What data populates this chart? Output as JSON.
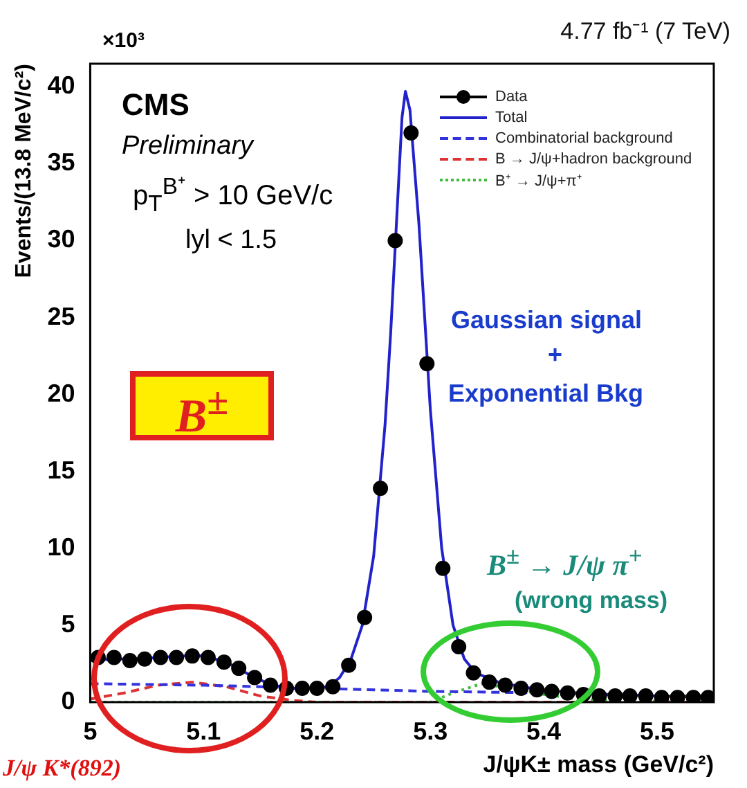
{
  "chart_data": {
    "type": "line",
    "xlabel": "J/ψK± mass (GeV/c²)",
    "ylabel": "Events/(13.8 MeV/c²)",
    "xlim": [
      5,
      5.55
    ],
    "xticks": [
      5,
      5.1,
      5.2,
      5.3,
      5.4,
      5.5
    ],
    "ylim": [
      0,
      41.5
    ],
    "yticks": [
      0,
      5,
      10,
      15,
      20,
      25,
      30,
      35,
      40
    ],
    "legend": "top right",
    "grid": false,
    "annotations": [
      "4.77 fb⁻¹ (7 TeV)",
      "×10³",
      "CMS",
      "Preliminary",
      "p$_{T}$$^{B⁺}$ > 10 GeV/c",
      "lyl < 1.5",
      "B$^{±}$",
      "Gaussian signal",
      "+",
      "Exponential Bkg",
      "B$^{±}$ → J/ψ π$^{+}$",
      "(wrong mass)",
      "J/ψ K*(892)"
    ],
    "series": [
      {
        "name": "Data",
        "type": "scatter",
        "color": "#000000",
        "marker": "circle",
        "x": [
          5.007,
          5.021,
          5.035,
          5.048,
          5.062,
          5.076,
          5.09,
          5.104,
          5.118,
          5.131,
          5.145,
          5.159,
          5.173,
          5.187,
          5.2,
          5.214,
          5.228,
          5.242,
          5.256,
          5.269,
          5.283,
          5.297,
          5.311,
          5.325,
          5.338,
          5.352,
          5.366,
          5.38,
          5.394,
          5.407,
          5.421,
          5.435,
          5.449,
          5.463,
          5.476,
          5.49,
          5.504,
          5.518,
          5.532,
          5.545
        ],
        "values": [
          2.9,
          2.9,
          2.7,
          2.8,
          2.9,
          2.9,
          3.0,
          2.9,
          2.6,
          2.2,
          1.6,
          1.1,
          0.9,
          0.9,
          0.9,
          1.0,
          2.4,
          5.5,
          13.9,
          30,
          37,
          22,
          8.7,
          3.6,
          1.9,
          1.3,
          1.1,
          0.9,
          0.8,
          0.7,
          0.6,
          0.5,
          0.4,
          0.4,
          0.4,
          0.4,
          0.3,
          0.3,
          0.3,
          0.3
        ]
      },
      {
        "name": "Total",
        "type": "line",
        "color": "#2222cc",
        "line_style": "solid",
        "x": [
          5.0,
          5.02,
          5.04,
          5.06,
          5.08,
          5.1,
          5.12,
          5.14,
          5.16,
          5.18,
          5.2,
          5.21,
          5.22,
          5.23,
          5.24,
          5.25,
          5.26,
          5.265,
          5.27,
          5.275,
          5.278,
          5.282,
          5.29,
          5.3,
          5.31,
          5.32,
          5.33,
          5.34,
          5.36,
          5.38,
          5.4,
          5.43,
          5.46,
          5.5,
          5.55
        ],
        "values": [
          2.7,
          2.8,
          2.8,
          2.9,
          3.0,
          3.0,
          2.6,
          1.8,
          1.1,
          0.9,
          0.9,
          1.0,
          1.6,
          2.8,
          5.0,
          9.5,
          18,
          24,
          31,
          38,
          39.7,
          38.5,
          31,
          19,
          10,
          5,
          2.8,
          1.9,
          1.3,
          1.0,
          0.8,
          0.6,
          0.5,
          0.4,
          0.3
        ]
      },
      {
        "name": "Combinatorial background",
        "type": "line",
        "color": "#3333dd",
        "line_style": "dashed",
        "x": [
          5.0,
          5.1,
          5.2,
          5.3,
          5.4,
          5.5,
          5.55
        ],
        "values": [
          1.2,
          1.1,
          0.9,
          0.7,
          0.6,
          0.4,
          0.4
        ]
      },
      {
        "name": "B → J/ψ+hadron background",
        "type": "line",
        "color": "#dd3333",
        "line_style": "dashed",
        "x": [
          5.0,
          5.03,
          5.06,
          5.09,
          5.12,
          5.15,
          5.18,
          5.2,
          5.55
        ],
        "values": [
          0.2,
          0.6,
          1.1,
          1.3,
          1.0,
          0.4,
          0.1,
          0,
          0
        ]
      },
      {
        "name": "B⁺ → J/ψ+π⁺",
        "type": "line",
        "color": "#44bb44",
        "line_style": "dotted",
        "x": [
          5.0,
          5.3,
          5.32,
          5.345,
          5.37,
          5.4,
          5.43,
          5.46,
          5.55
        ],
        "values": [
          0,
          0,
          0.6,
          1.2,
          0.9,
          0.5,
          0.2,
          0.1,
          0
        ]
      }
    ]
  }
}
